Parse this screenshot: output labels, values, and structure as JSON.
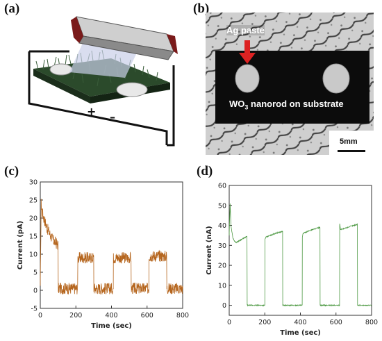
{
  "panels": {
    "a": {
      "label": "(a)"
    },
    "b": {
      "label": "(b)",
      "arrow_label": "Ag paste",
      "substrate_text": "WO",
      "substrate_sub": "3",
      "substrate_rest": " nanorod on substrate",
      "scalebar_label": "5mm"
    },
    "c": {
      "label": "(c)"
    },
    "d": {
      "label": "(d)"
    }
  },
  "colors": {
    "series_c": "#b5651d",
    "series_d": "#4f9a45"
  },
  "chart_data": [
    {
      "id": "c",
      "type": "line",
      "xlabel": "Time (sec)",
      "ylabel": "Current (pA)",
      "xlim": [
        0,
        800
      ],
      "ylim": [
        -5,
        30
      ],
      "xticks": [
        0,
        200,
        400,
        600,
        800
      ],
      "yticks": [
        -5,
        0,
        5,
        10,
        15,
        20,
        25,
        30
      ],
      "series": [
        {
          "values_note": "",
          "x": [
            0,
            5,
            10,
            20,
            30,
            40,
            50,
            60,
            70,
            80,
            90,
            100,
            101,
            120,
            140,
            160,
            180,
            200,
            210,
            211,
            230,
            250,
            270,
            290,
            300,
            301,
            320,
            340,
            360,
            380,
            400,
            410,
            411,
            430,
            450,
            470,
            490,
            500,
            510,
            511,
            530,
            550,
            570,
            590,
            600,
            610,
            611,
            630,
            650,
            670,
            690,
            700,
            710,
            711,
            730,
            750,
            770,
            790,
            800
          ],
          "y": [
            0,
            24,
            22,
            20,
            18.5,
            17,
            16,
            15,
            14,
            13.5,
            13,
            12.5,
            0.5,
            0.5,
            0.5,
            0.5,
            0.5,
            0.5,
            0.5,
            9,
            9,
            9,
            9,
            9,
            9,
            0.5,
            0.5,
            0.5,
            0.5,
            0.5,
            0.5,
            0.5,
            9,
            9,
            9,
            9,
            9,
            9,
            9,
            0.5,
            0.5,
            0.5,
            0.5,
            0.5,
            0.5,
            0.5,
            9.5,
            9.5,
            9.5,
            9.5,
            9.5,
            9.5,
            9.5,
            0.5,
            0.5,
            0.5,
            0.5,
            0.5,
            0.5
          ]
        }
      ]
    },
    {
      "id": "d",
      "type": "line",
      "xlabel": "Time (sec)",
      "ylabel": "Current (nA)",
      "xlim": [
        0,
        800
      ],
      "ylim": [
        -5,
        60
      ],
      "xticks": [
        0,
        200,
        400,
        600,
        800
      ],
      "yticks": [
        0,
        10,
        20,
        30,
        40,
        50,
        60
      ],
      "series": [
        {
          "x": [
            0,
            5,
            10,
            20,
            30,
            40,
            60,
            80,
            100,
            101,
            120,
            150,
            180,
            200,
            201,
            205,
            230,
            260,
            300,
            301,
            330,
            360,
            400,
            410,
            411,
            415,
            440,
            470,
            510,
            511,
            540,
            570,
            600,
            620,
            621,
            625,
            650,
            680,
            720,
            721,
            750,
            780,
            800
          ],
          "y": [
            35,
            51,
            40,
            34,
            32,
            31.5,
            32.5,
            33.5,
            34.5,
            0,
            0,
            0,
            0,
            0,
            33,
            34,
            35,
            36,
            37,
            0,
            0,
            0,
            0,
            0,
            34,
            36,
            37,
            38,
            39,
            0,
            0,
            0,
            0,
            0,
            41,
            38,
            38.5,
            39.5,
            40.5,
            0,
            0,
            0,
            0
          ]
        }
      ]
    }
  ]
}
